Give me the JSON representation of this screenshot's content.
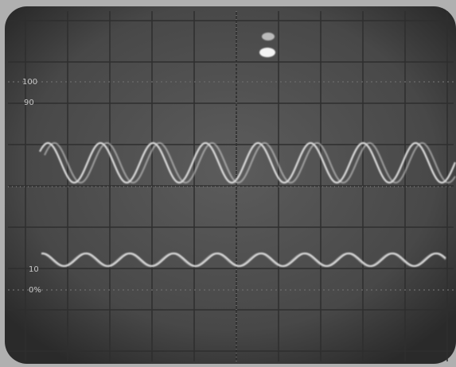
{
  "graticule_labels": {
    "top": "100",
    "upper": "90",
    "lower": "10",
    "bottom": "0%"
  }
}
